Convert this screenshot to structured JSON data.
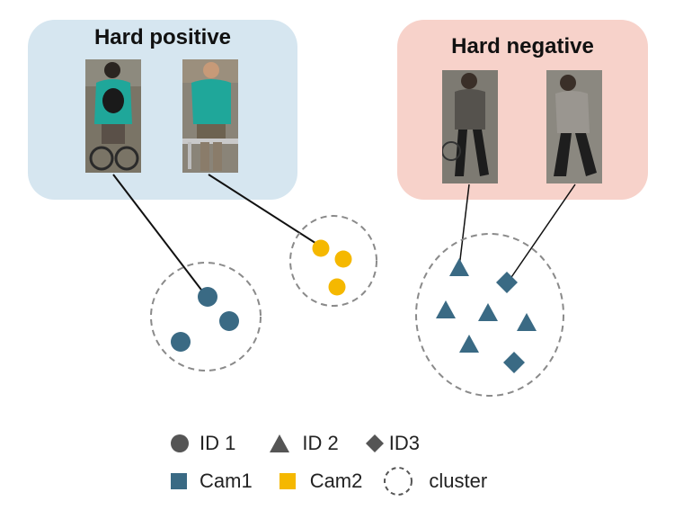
{
  "panels": {
    "hard_positive": {
      "title": "Hard positive",
      "color": "#d6e6f0"
    },
    "hard_negative": {
      "title": "Hard negative",
      "color": "#f7d2ca"
    }
  },
  "colors": {
    "cam1": "#3a6a84",
    "cam2": "#f5b800",
    "legend_shape": "#555555",
    "cluster_border": "#8a8a8a"
  },
  "legend": {
    "id1": "ID 1",
    "id2": "ID 2",
    "id3": "ID3",
    "cam1": "Cam1",
    "cam2": "Cam2",
    "cluster": "cluster"
  }
}
